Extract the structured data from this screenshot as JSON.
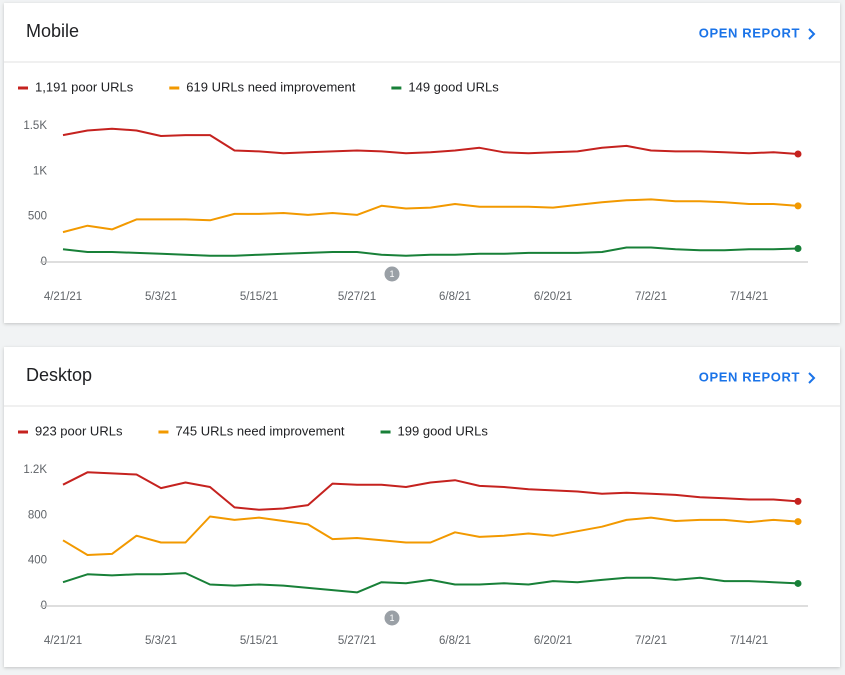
{
  "panels": [
    {
      "title": "Mobile",
      "link": "OPEN REPORT",
      "chart_data": {
        "type": "line",
        "categories": [
          "4/21/21",
          null,
          null,
          null,
          "5/3/21",
          null,
          null,
          null,
          "5/15/21",
          null,
          null,
          null,
          "5/27/21",
          null,
          null,
          null,
          "6/8/21",
          null,
          null,
          null,
          "6/20/21",
          null,
          null,
          null,
          "7/2/21",
          null,
          null,
          null,
          "7/14/21",
          null,
          null
        ],
        "series": [
          {
            "name": "1,191 poor URLs",
            "color": "#c5221f",
            "values": [
              1400,
              1450,
              1470,
              1450,
              1390,
              1400,
              1400,
              1230,
              1220,
              1200,
              1210,
              1220,
              1230,
              1220,
              1200,
              1210,
              1230,
              1260,
              1210,
              1200,
              1210,
              1220,
              1260,
              1280,
              1230,
              1220,
              1220,
              1210,
              1200,
              1210,
              1191
            ]
          },
          {
            "name": "619 URLs need improvement",
            "color": "#f29900",
            "values": [
              330,
              400,
              360,
              470,
              470,
              470,
              460,
              530,
              530,
              540,
              520,
              540,
              520,
              620,
              590,
              600,
              640,
              610,
              610,
              610,
              600,
              630,
              660,
              680,
              690,
              670,
              670,
              660,
              640,
              640,
              619
            ]
          },
          {
            "name": "149 good URLs",
            "color": "#188038",
            "values": [
              140,
              110,
              110,
              100,
              90,
              80,
              70,
              70,
              80,
              90,
              100,
              110,
              110,
              80,
              70,
              80,
              80,
              90,
              90,
              100,
              100,
              100,
              110,
              160,
              160,
              140,
              130,
              130,
              140,
              140,
              149
            ]
          }
        ],
        "ylim": [
          0,
          1500
        ],
        "yticks": [
          0,
          500,
          {
            "value": 1000,
            "label": "1K"
          },
          {
            "value": 1500,
            "label": "1.5K"
          }
        ],
        "annotation": "1"
      }
    },
    {
      "title": "Desktop",
      "link": "OPEN REPORT",
      "chart_data": {
        "type": "line",
        "categories": [
          "4/21/21",
          null,
          null,
          null,
          "5/3/21",
          null,
          null,
          null,
          "5/15/21",
          null,
          null,
          null,
          "5/27/21",
          null,
          null,
          null,
          "6/8/21",
          null,
          null,
          null,
          "6/20/21",
          null,
          null,
          null,
          "7/2/21",
          null,
          null,
          null,
          "7/14/21",
          null,
          null
        ],
        "series": [
          {
            "name": "923 poor URLs",
            "color": "#c5221f",
            "values": [
              1070,
              1180,
              1170,
              1160,
              1040,
              1090,
              1050,
              870,
              850,
              860,
              890,
              1080,
              1070,
              1070,
              1050,
              1090,
              1110,
              1060,
              1050,
              1030,
              1020,
              1010,
              990,
              1000,
              990,
              980,
              960,
              950,
              940,
              940,
              923
            ]
          },
          {
            "name": "745 URLs need improvement",
            "color": "#f29900",
            "values": [
              580,
              450,
              460,
              620,
              560,
              560,
              790,
              760,
              780,
              750,
              720,
              590,
              600,
              580,
              560,
              560,
              650,
              610,
              620,
              640,
              620,
              660,
              700,
              760,
              780,
              750,
              760,
              760,
              740,
              760,
              745
            ]
          },
          {
            "name": "199 good URLs",
            "color": "#188038",
            "values": [
              210,
              280,
              270,
              280,
              280,
              290,
              190,
              180,
              190,
              180,
              160,
              140,
              120,
              210,
              200,
              230,
              190,
              190,
              200,
              190,
              220,
              210,
              230,
              250,
              250,
              230,
              250,
              220,
              220,
              210,
              199
            ]
          }
        ],
        "ylim": [
          0,
          1200
        ],
        "yticks": [
          0,
          400,
          800,
          {
            "value": 1200,
            "label": "1.2K"
          }
        ],
        "annotation": "1"
      }
    }
  ]
}
